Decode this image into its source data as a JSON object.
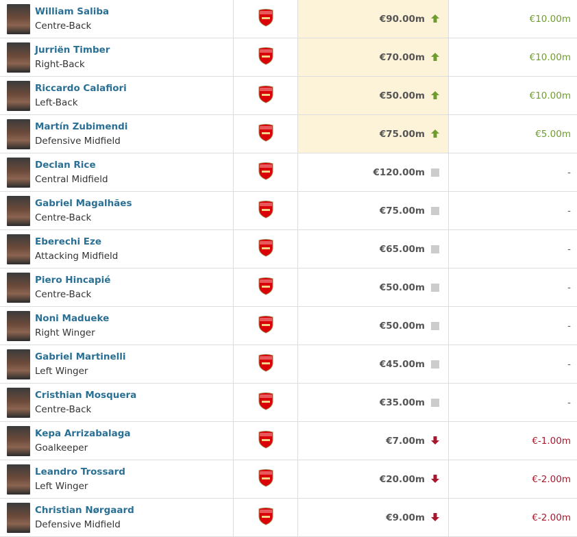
{
  "colors": {
    "name_link": "#2a6f94",
    "up": "#6e9c2e",
    "down": "#a8182c",
    "highlight": "#fdf3d8"
  },
  "club_icon": "arsenal-crest-icon",
  "players": [
    {
      "name": "William Saliba",
      "position": "Centre-Back",
      "value": "€90.00m",
      "trend": "up",
      "change": "€10.00m"
    },
    {
      "name": "Jurriën Timber",
      "position": "Right-Back",
      "value": "€70.00m",
      "trend": "up",
      "change": "€10.00m"
    },
    {
      "name": "Riccardo Calafiori",
      "position": "Left-Back",
      "value": "€50.00m",
      "trend": "up",
      "change": "€10.00m"
    },
    {
      "name": "Martín Zubimendi",
      "position": "Defensive Midfield",
      "value": "€75.00m",
      "trend": "up",
      "change": "€5.00m"
    },
    {
      "name": "Declan Rice",
      "position": "Central Midfield",
      "value": "€120.00m",
      "trend": "flat",
      "change": "-"
    },
    {
      "name": "Gabriel Magalhães",
      "position": "Centre-Back",
      "value": "€75.00m",
      "trend": "flat",
      "change": "-"
    },
    {
      "name": "Eberechi Eze",
      "position": "Attacking Midfield",
      "value": "€65.00m",
      "trend": "flat",
      "change": "-"
    },
    {
      "name": "Piero Hincapié",
      "position": "Centre-Back",
      "value": "€50.00m",
      "trend": "flat",
      "change": "-"
    },
    {
      "name": "Noni Madueke",
      "position": "Right Winger",
      "value": "€50.00m",
      "trend": "flat",
      "change": "-"
    },
    {
      "name": "Gabriel Martinelli",
      "position": "Left Winger",
      "value": "€45.00m",
      "trend": "flat",
      "change": "-"
    },
    {
      "name": "Cristhian Mosquera",
      "position": "Centre-Back",
      "value": "€35.00m",
      "trend": "flat",
      "change": "-"
    },
    {
      "name": "Kepa Arrizabalaga",
      "position": "Goalkeeper",
      "value": "€7.00m",
      "trend": "down",
      "change": "€-1.00m"
    },
    {
      "name": "Leandro Trossard",
      "position": "Left Winger",
      "value": "€20.00m",
      "trend": "down",
      "change": "€-2.00m"
    },
    {
      "name": "Christian Nørgaard",
      "position": "Defensive Midfield",
      "value": "€9.00m",
      "trend": "down",
      "change": "€-2.00m"
    }
  ]
}
